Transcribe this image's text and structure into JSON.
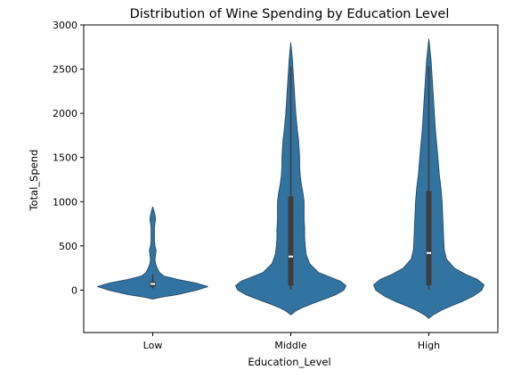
{
  "chart_data": {
    "type": "violin",
    "title": "Distribution of Wine Spending by Education Level",
    "xlabel": "Education_Level",
    "ylabel": "Total_Spend",
    "categories": [
      "Low",
      "Middle",
      "High"
    ],
    "ylim": [
      -480,
      3000
    ],
    "yticks": [
      0,
      500,
      1000,
      1500,
      2000,
      2500,
      3000
    ],
    "grid": false,
    "legend": "none",
    "colors": {
      "violin_fill": "#3274a1",
      "violin_stroke": "#2c3e50",
      "box": "#3d3d3d",
      "median": "#ffffff",
      "axis": "#000000"
    },
    "violins": [
      {
        "category": "Low",
        "min": -90,
        "q1": 35,
        "median": 70,
        "q3": 100,
        "whisker_low": 20,
        "whisker_high": 180,
        "max": 930,
        "profile": [
          [
            -100,
            0.0
          ],
          [
            -80,
            0.15
          ],
          [
            -50,
            0.45
          ],
          [
            0,
            0.8
          ],
          [
            40,
            1.0
          ],
          [
            80,
            0.78
          ],
          [
            120,
            0.45
          ],
          [
            160,
            0.2
          ],
          [
            200,
            0.12
          ],
          [
            250,
            0.08
          ],
          [
            300,
            0.05
          ],
          [
            350,
            0.04
          ],
          [
            400,
            0.05
          ],
          [
            450,
            0.06
          ],
          [
            500,
            0.04
          ],
          [
            560,
            0.03
          ],
          [
            620,
            0.03
          ],
          [
            700,
            0.03
          ],
          [
            760,
            0.04
          ],
          [
            800,
            0.05
          ],
          [
            850,
            0.04
          ],
          [
            900,
            0.02
          ],
          [
            940,
            0.0
          ]
        ]
      },
      {
        "category": "Middle",
        "min": -280,
        "q1": 50,
        "median": 380,
        "q3": 1060,
        "whisker_low": 5,
        "whisker_high": 2530,
        "max": 2800,
        "profile": [
          [
            -280,
            0.0
          ],
          [
            -240,
            0.08
          ],
          [
            -200,
            0.2
          ],
          [
            -150,
            0.4
          ],
          [
            -100,
            0.62
          ],
          [
            -50,
            0.82
          ],
          [
            0,
            0.96
          ],
          [
            50,
            1.0
          ],
          [
            100,
            0.9
          ],
          [
            150,
            0.7
          ],
          [
            200,
            0.5
          ],
          [
            300,
            0.34
          ],
          [
            400,
            0.28
          ],
          [
            500,
            0.26
          ],
          [
            600,
            0.25
          ],
          [
            700,
            0.25
          ],
          [
            800,
            0.24
          ],
          [
            900,
            0.24
          ],
          [
            1000,
            0.24
          ],
          [
            1100,
            0.22
          ],
          [
            1200,
            0.19
          ],
          [
            1300,
            0.17
          ],
          [
            1400,
            0.16
          ],
          [
            1500,
            0.16
          ],
          [
            1600,
            0.15
          ],
          [
            1700,
            0.14
          ],
          [
            1800,
            0.12
          ],
          [
            2000,
            0.09
          ],
          [
            2200,
            0.07
          ],
          [
            2400,
            0.05
          ],
          [
            2600,
            0.03
          ],
          [
            2800,
            0.0
          ]
        ]
      },
      {
        "category": "High",
        "min": -320,
        "q1": 55,
        "median": 420,
        "q3": 1120,
        "whisker_low": 5,
        "whisker_high": 2530,
        "max": 2840,
        "profile": [
          [
            -320,
            0.0
          ],
          [
            -280,
            0.08
          ],
          [
            -230,
            0.22
          ],
          [
            -180,
            0.4
          ],
          [
            -130,
            0.6
          ],
          [
            -70,
            0.8
          ],
          [
            0,
            0.96
          ],
          [
            60,
            1.0
          ],
          [
            120,
            0.88
          ],
          [
            180,
            0.66
          ],
          [
            250,
            0.46
          ],
          [
            350,
            0.32
          ],
          [
            450,
            0.28
          ],
          [
            550,
            0.27
          ],
          [
            700,
            0.26
          ],
          [
            850,
            0.25
          ],
          [
            1000,
            0.24
          ],
          [
            1150,
            0.22
          ],
          [
            1300,
            0.19
          ],
          [
            1450,
            0.17
          ],
          [
            1600,
            0.15
          ],
          [
            1800,
            0.12
          ],
          [
            2000,
            0.1
          ],
          [
            2200,
            0.08
          ],
          [
            2400,
            0.06
          ],
          [
            2600,
            0.04
          ],
          [
            2840,
            0.0
          ]
        ]
      }
    ]
  }
}
